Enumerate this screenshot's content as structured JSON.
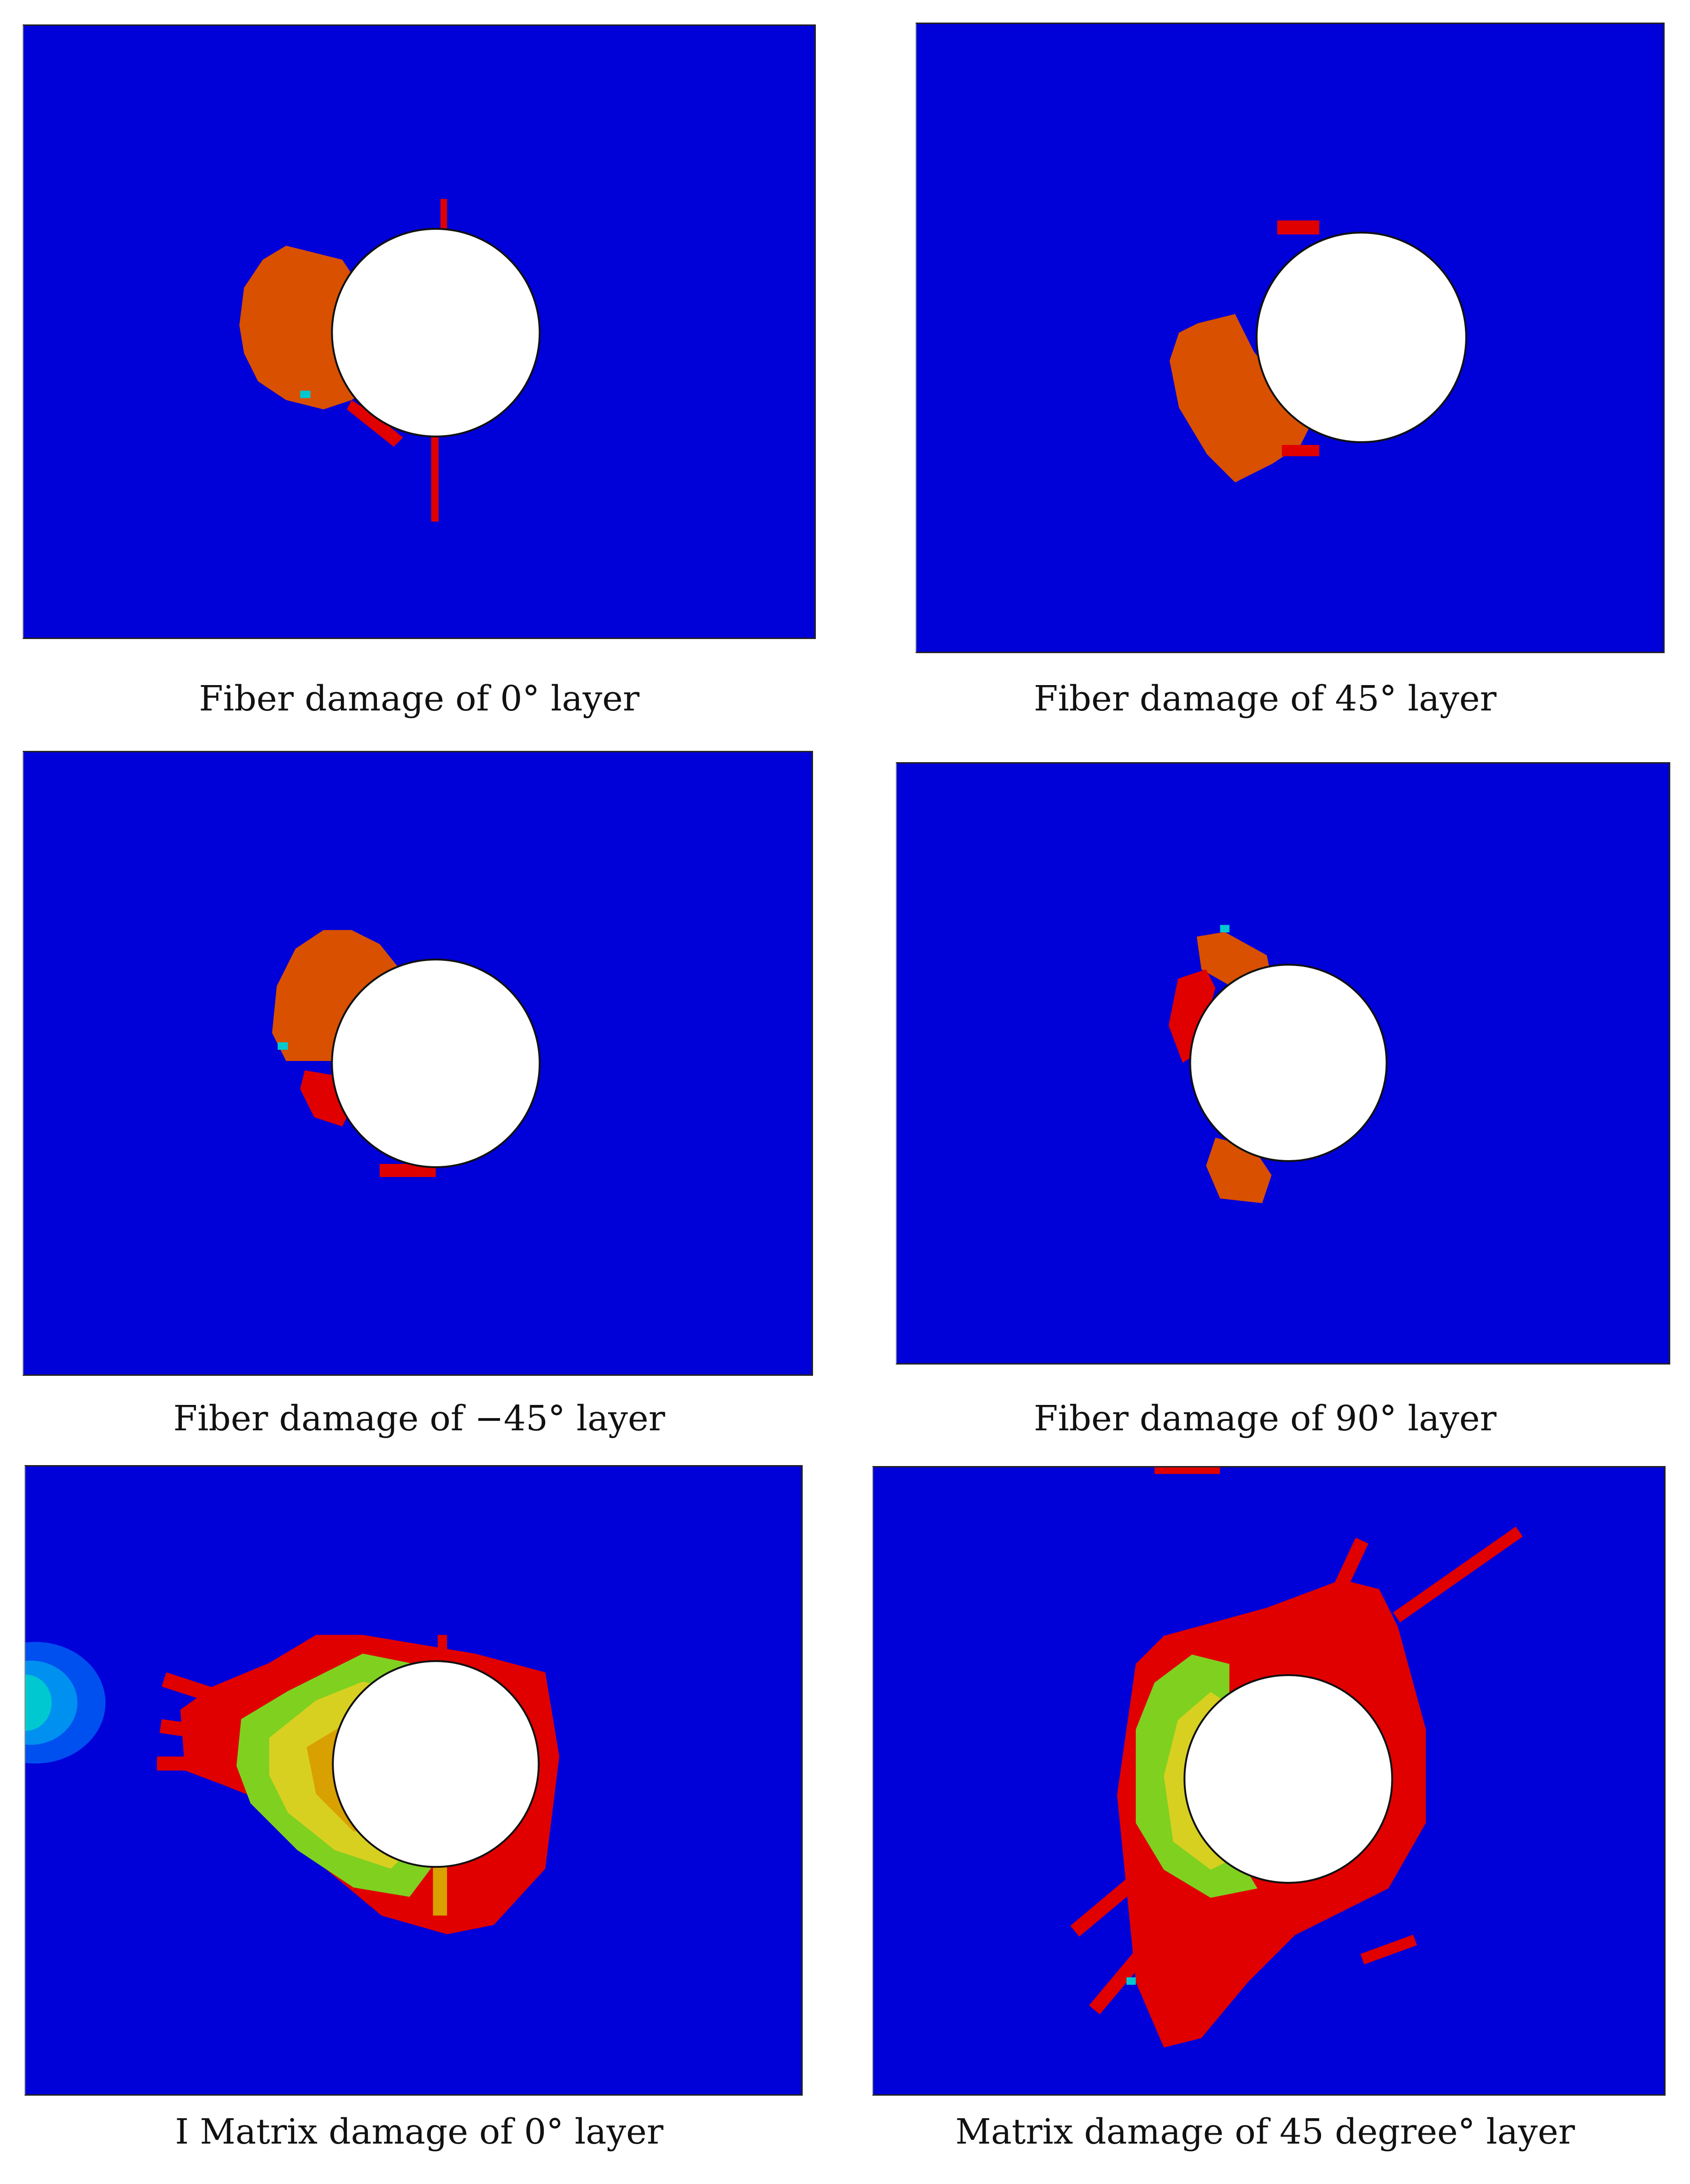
{
  "colors": {
    "background": "#0000d8",
    "damage_orange": "#d85000",
    "damage_red": "#e00000",
    "damage_yellow": "#d8a000",
    "damage_green": "#80d020",
    "damage_cyan": "#00c8d0",
    "hole": "#ffffff"
  },
  "panels": [
    {
      "caption": "Fiber damage of 0° layer"
    },
    {
      "caption": "Fiber damage of 45° layer"
    },
    {
      "caption": "Fiber damage of −45° layer"
    },
    {
      "caption": "Fiber damage of 90° layer"
    },
    {
      "caption": "I Matrix damage of 0° layer"
    },
    {
      "caption": "Matrix damage of 45 degree° layer"
    }
  ]
}
